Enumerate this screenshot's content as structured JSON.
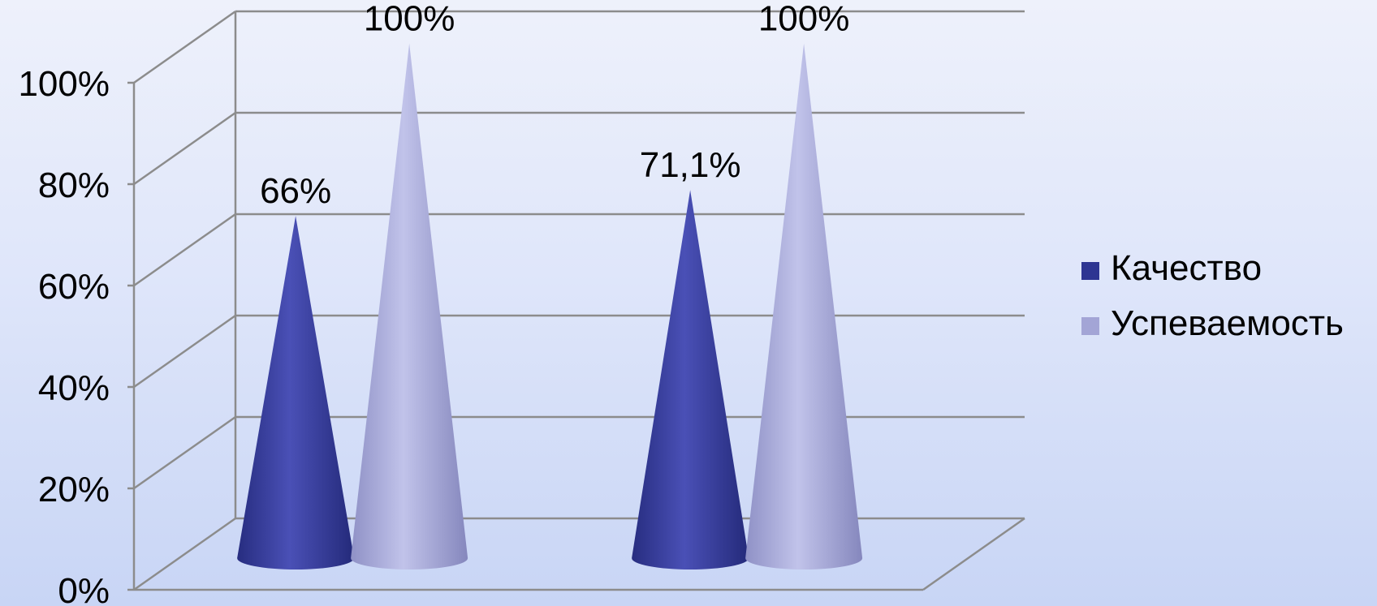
{
  "chart_data": {
    "type": "bar",
    "style": "3d-cone",
    "categories": [
      "",
      ""
    ],
    "series": [
      {
        "name": "Качество",
        "values": [
          66,
          71.1
        ],
        "labels": [
          "66%",
          "71,1%"
        ],
        "color": "#2e3592"
      },
      {
        "name": "Успеваемость",
        "values": [
          100,
          100
        ],
        "labels": [
          "100%",
          "100%"
        ],
        "color": "#a3a5d6"
      }
    ],
    "yticks": [
      "0%",
      "20%",
      "40%",
      "60%",
      "80%",
      "100%"
    ],
    "ylim": [
      0,
      100
    ],
    "grid": true,
    "legend": "right"
  }
}
